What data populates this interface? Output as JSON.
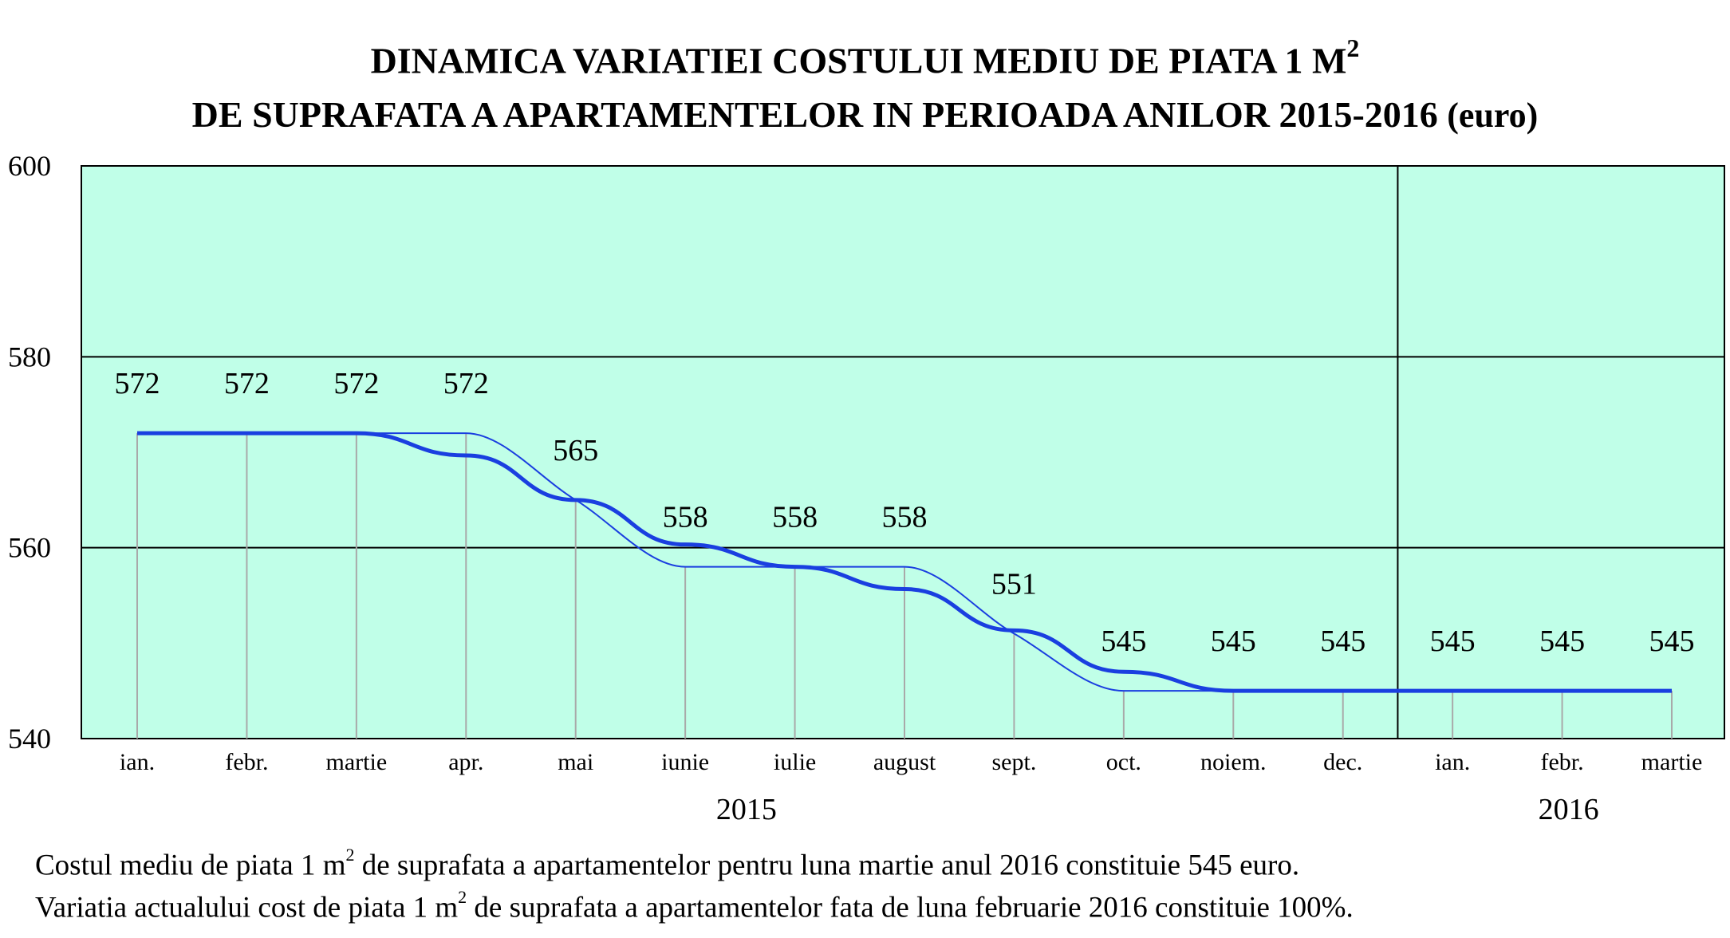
{
  "title": {
    "line1": "DINAMICA VARIATIEI COSTULUI MEDIU DE PIATA 1 M",
    "line1_sup": "2",
    "line2": "DE SUPRAFATA A APARTAMENTELOR IN PERIOADA ANILOR 2015-2016",
    "line2_unit": "(euro)"
  },
  "chart_data": {
    "type": "line",
    "categories": [
      "ian.",
      "febr.",
      "martie",
      "apr.",
      "mai",
      "iunie",
      "iulie",
      "august",
      "sept.",
      "oct.",
      "noiem.",
      "dec.",
      "ian.",
      "febr.",
      "martie"
    ],
    "values": [
      572,
      572,
      572,
      572,
      565,
      558,
      558,
      558,
      551,
      545,
      545,
      545,
      545,
      545,
      545
    ],
    "data_labels": [
      "572",
      "572",
      "572",
      "572",
      "565",
      "558",
      "558",
      "558",
      "551",
      "545",
      "545",
      "545",
      "545",
      "545",
      "545"
    ],
    "year_labels": [
      {
        "label": "2015",
        "from_index": 0,
        "to_index": 11
      },
      {
        "label": "2016",
        "from_index": 12,
        "to_index": 14
      }
    ],
    "yticks": [
      540,
      560,
      580,
      600
    ],
    "ylim": [
      540,
      600
    ],
    "grid": true,
    "background_color": "#c0ffe8",
    "line_color": "#1a3fe0",
    "trend_color": "#1a3fe0",
    "title": "",
    "xlabel": "",
    "ylabel": ""
  },
  "captions": {
    "line1_a": "Costul mediu de piata 1 m",
    "line1_sup": "2",
    "line1_b": " de suprafata a apartamentelor pentru luna martie anul 2016 constituie 545 euro.",
    "line2_a": "Variatia actualului cost de piata 1 m",
    "line2_sup": "2",
    "line2_b": " de suprafata a apartamentelor fata de luna februarie 2016 constituie 100%."
  }
}
